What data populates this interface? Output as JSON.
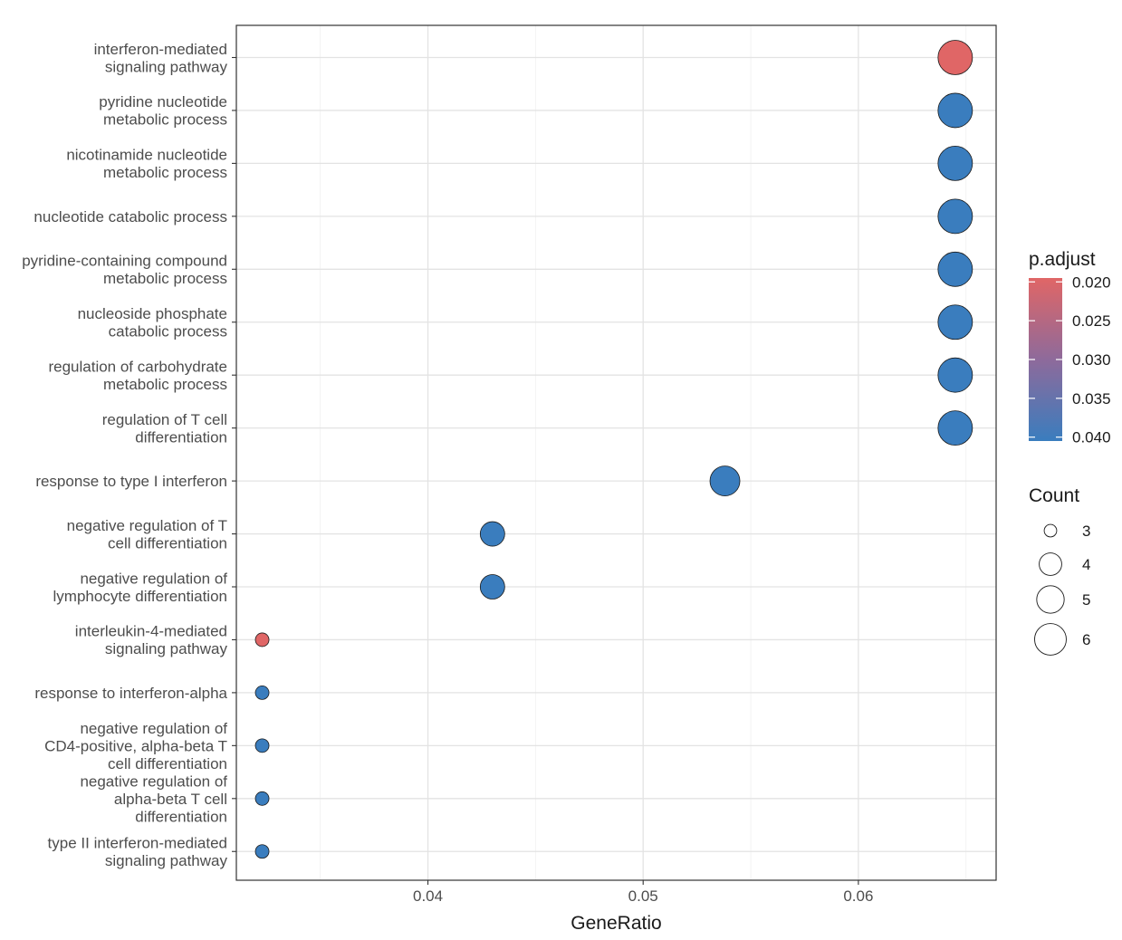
{
  "chart_data": {
    "type": "scatter",
    "title": "",
    "xlabel": "GeneRatio",
    "ylabel": "",
    "xlim": [
      0.0311,
      0.0664
    ],
    "xticks": [
      0.04,
      0.05,
      0.06
    ],
    "xtick_labels": [
      "0.04",
      "0.05",
      "0.06"
    ],
    "grid": true,
    "terms": [
      {
        "label": "interferon-mediated\nsignaling pathway",
        "gene_ratio": 0.0645,
        "count": 6,
        "p_adjust": 0.0195
      },
      {
        "label": "pyridine nucleotide\nmetabolic process",
        "gene_ratio": 0.0645,
        "count": 6,
        "p_adjust": 0.0405
      },
      {
        "label": "nicotinamide nucleotide\nmetabolic process",
        "gene_ratio": 0.0645,
        "count": 6,
        "p_adjust": 0.0405
      },
      {
        "label": "nucleotide catabolic process",
        "gene_ratio": 0.0645,
        "count": 6,
        "p_adjust": 0.0405
      },
      {
        "label": "pyridine-containing compound\nmetabolic process",
        "gene_ratio": 0.0645,
        "count": 6,
        "p_adjust": 0.0405
      },
      {
        "label": "nucleoside phosphate\ncatabolic process",
        "gene_ratio": 0.0645,
        "count": 6,
        "p_adjust": 0.0405
      },
      {
        "label": "regulation of carbohydrate\nmetabolic process",
        "gene_ratio": 0.0645,
        "count": 6,
        "p_adjust": 0.0405
      },
      {
        "label": "regulation of T cell\ndifferentiation",
        "gene_ratio": 0.0645,
        "count": 6,
        "p_adjust": 0.0405
      },
      {
        "label": "response to type I interferon",
        "gene_ratio": 0.0538,
        "count": 5,
        "p_adjust": 0.0405
      },
      {
        "label": "negative regulation of T\ncell differentiation",
        "gene_ratio": 0.043,
        "count": 4,
        "p_adjust": 0.0405
      },
      {
        "label": "negative regulation of\nlymphocyte differentiation",
        "gene_ratio": 0.043,
        "count": 4,
        "p_adjust": 0.0405
      },
      {
        "label": "interleukin-4-mediated\nsignaling pathway",
        "gene_ratio": 0.0323,
        "count": 3,
        "p_adjust": 0.0195
      },
      {
        "label": "response to interferon-alpha",
        "gene_ratio": 0.0323,
        "count": 3,
        "p_adjust": 0.0405
      },
      {
        "label": "negative regulation of\nCD4-positive, alpha-beta T\ncell differentiation",
        "gene_ratio": 0.0323,
        "count": 3,
        "p_adjust": 0.0405
      },
      {
        "label": "negative regulation of\nalpha-beta T cell\ndifferentiation",
        "gene_ratio": 0.0323,
        "count": 3,
        "p_adjust": 0.0405
      },
      {
        "label": "type II interferon-mediated\nsignaling pathway",
        "gene_ratio": 0.0323,
        "count": 3,
        "p_adjust": 0.0405
      }
    ],
    "color_legend": {
      "title": "p.adjust",
      "min": 0.0195,
      "max": 0.0405,
      "low_color": "#e06666",
      "high_color": "#3a7dbe",
      "ticks": [
        0.02,
        0.025,
        0.03,
        0.035,
        0.04
      ],
      "tick_labels": [
        "0.020",
        "0.025",
        "0.030",
        "0.035",
        "0.040"
      ],
      "position": "right"
    },
    "size_legend": {
      "title": "Count",
      "values": [
        3,
        4,
        5,
        6
      ],
      "labels": [
        "3",
        "4",
        "5",
        "6"
      ],
      "position": "right"
    }
  }
}
